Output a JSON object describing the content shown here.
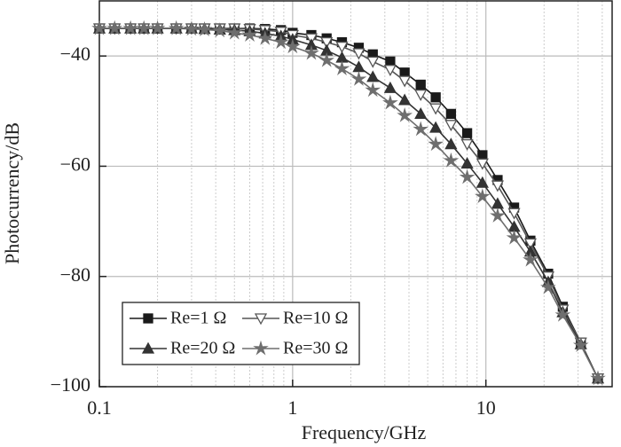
{
  "chart_data": {
    "type": "line",
    "xscale": "log",
    "minor_grid": true,
    "grid": true,
    "legend": "lower left",
    "xlabel": "Frequency/GHz",
    "ylabel": "Photocurrency/dB",
    "xlim": [
      0.1,
      45
    ],
    "ylim": [
      -100,
      -30
    ],
    "xticks": [
      0.1,
      1,
      10
    ],
    "yticks": [
      {
        "value": -40,
        "label": "−40"
      },
      {
        "value": -60,
        "label": "−60"
      },
      {
        "value": -80,
        "label": "−80"
      },
      {
        "value": -100,
        "label": "−100"
      }
    ],
    "x": [
      0.1,
      0.12,
      0.145,
      0.17,
      0.2,
      0.25,
      0.3,
      0.35,
      0.42,
      0.5,
      0.6,
      0.72,
      0.87,
      1.0,
      1.25,
      1.5,
      1.8,
      2.2,
      2.6,
      3.2,
      3.8,
      4.6,
      5.5,
      6.6,
      8,
      9.6,
      11.5,
      14,
      17,
      21,
      25,
      31,
      38
    ],
    "series": [
      {
        "name": "Re=1 Ω",
        "color": "#1a1a1a",
        "marker": "square",
        "filled": true,
        "values": [
          -35,
          -35,
          -35,
          -35,
          -35,
          -35,
          -35,
          -35,
          -35,
          -35,
          -35,
          -35.1,
          -35.3,
          -35.8,
          -36.2,
          -36.8,
          -37.5,
          -38.5,
          -39.7,
          -41,
          -43,
          -45.2,
          -47.5,
          -50.5,
          -54,
          -58,
          -62.5,
          -67.5,
          -73.5,
          -79.5,
          -85.5,
          -92,
          -98.5
        ]
      },
      {
        "name": "Re=10 Ω",
        "color": "#555555",
        "marker": "triangle-down",
        "filled": false,
        "values": [
          -35,
          -35,
          -35,
          -35,
          -35,
          -35,
          -35,
          -35,
          -35,
          -35,
          -35.1,
          -35.3,
          -35.6,
          -36.2,
          -36.8,
          -37.5,
          -38.3,
          -39.5,
          -41,
          -42.5,
          -44.5,
          -47,
          -49.5,
          -52.5,
          -56,
          -59.5,
          -63.5,
          -68.5,
          -74,
          -80,
          -86,
          -92,
          -98.5
        ]
      },
      {
        "name": "Re=20 Ω",
        "color": "#333333",
        "marker": "triangle-up",
        "filled": true,
        "values": [
          -35,
          -35,
          -35,
          -35,
          -35,
          -35,
          -35,
          -35.1,
          -35.2,
          -35.3,
          -35.5,
          -35.9,
          -36.4,
          -37,
          -38,
          -39,
          -40.3,
          -42,
          -43.8,
          -45.8,
          -48,
          -50.5,
          -53,
          -56,
          -59.5,
          -63,
          -66.8,
          -71,
          -75.5,
          -81,
          -86.5,
          -92.3,
          -98.5
        ]
      },
      {
        "name": "Re=30 Ω",
        "color": "#6e6e6e",
        "marker": "star",
        "filled": true,
        "values": [
          -35,
          -35,
          -35,
          -35,
          -35,
          -35,
          -35.1,
          -35.2,
          -35.4,
          -35.8,
          -36.2,
          -36.8,
          -37.5,
          -38.3,
          -39.5,
          -40.8,
          -42.3,
          -44.2,
          -46.2,
          -48.5,
          -50.8,
          -53.3,
          -56,
          -59,
          -62,
          -65.5,
          -69,
          -73,
          -77,
          -82,
          -87,
          -92.5,
          -98.5
        ]
      }
    ]
  }
}
